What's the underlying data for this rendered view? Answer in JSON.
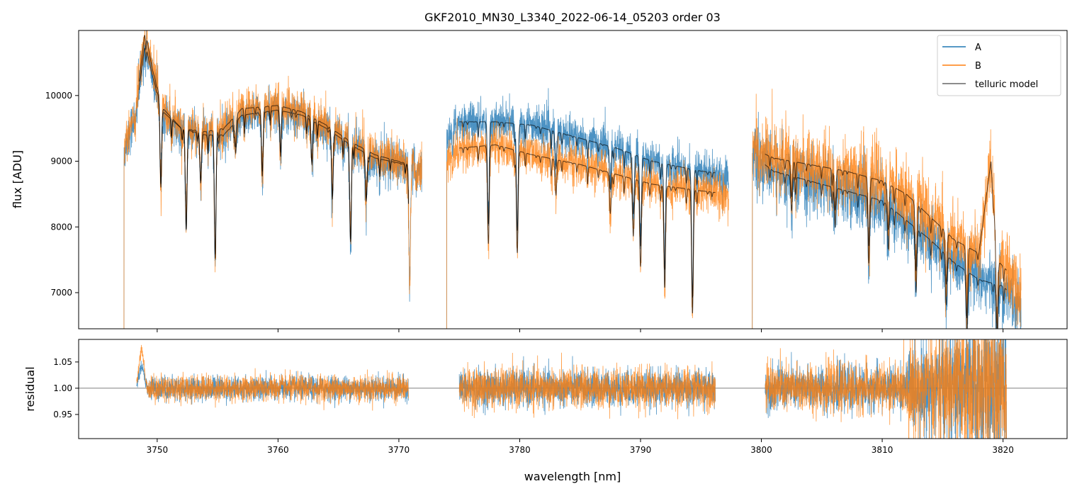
{
  "chart_data": {
    "type": "line",
    "title": "GKF2010_MN30_L3340_2022-06-14_05203  order 03",
    "xlabel": "wavelength [nm]",
    "xlim": [
      3743.5,
      3825.3
    ],
    "xticks": [
      3750,
      3760,
      3770,
      3780,
      3790,
      3800,
      3810,
      3820
    ],
    "panels": [
      {
        "name": "flux",
        "ylabel": "flux [ADU]",
        "ylim": [
          6450,
          10990
        ],
        "yticks": [
          7000,
          8000,
          9000,
          10000
        ],
        "legend": {
          "placement": "top-right",
          "entries": [
            "A",
            "B",
            "telluric model"
          ]
        }
      },
      {
        "name": "residual",
        "ylabel": "residual",
        "ylim": [
          0.904,
          1.093
        ],
        "yticks": [
          "0.95",
          "1.00",
          "1.05"
        ],
        "yticks_values": [
          0.95,
          1.0,
          1.05
        ],
        "reference_line": 1.0
      }
    ],
    "series": [
      {
        "name": "A",
        "color": "#1f77b4",
        "segments": [
          {
            "range": [
              3747.2,
              3771.9
            ],
            "continuum": [
              [
                3747.2,
                9150
              ],
              [
                3748.3,
                9800
              ],
              [
                3749,
                10800
              ],
              [
                3749.6,
                10300
              ],
              [
                3750.5,
                9750
              ],
              [
                3752,
                9500
              ],
              [
                3754,
                9400
              ],
              [
                3755.5,
                9400
              ],
              [
                3757,
                9700
              ],
              [
                3760,
                9780
              ],
              [
                3762,
                9700
              ],
              [
                3764,
                9500
              ],
              [
                3766,
                9250
              ],
              [
                3768,
                9050
              ],
              [
                3771.9,
                8900
              ]
            ],
            "noise": 170
          },
          {
            "range": [
              3773.9,
              3797.3
            ],
            "continuum": [
              [
                3773.9,
                9300
              ],
              [
                3775,
                9600
              ],
              [
                3778,
                9600
              ],
              [
                3781,
                9550
              ],
              [
                3785,
                9350
              ],
              [
                3788,
                9200
              ],
              [
                3791,
                9000
              ],
              [
                3795,
                8850
              ],
              [
                3797.3,
                8800
              ]
            ],
            "noise": 160
          },
          {
            "range": [
              3799.2,
              3821.5
            ],
            "continuum": [
              [
                3799.2,
                9100
              ],
              [
                3801,
                8850
              ],
              [
                3804,
                8700
              ],
              [
                3807,
                8550
              ],
              [
                3810,
                8400
              ],
              [
                3812,
                8100
              ],
              [
                3814,
                7800
              ],
              [
                3816,
                7450
              ],
              [
                3818,
                7200
              ],
              [
                3820,
                7100
              ],
              [
                3821.5,
                6800
              ]
            ],
            "noise": 260
          }
        ]
      },
      {
        "name": "B",
        "color": "#ff7f0e",
        "segments": [
          {
            "range": [
              3747.2,
              3771.9
            ],
            "continuum": [
              [
                3747.2,
                9150
              ],
              [
                3748.3,
                9900
              ],
              [
                3749,
                11000
              ],
              [
                3749.6,
                10400
              ],
              [
                3750.5,
                9800
              ],
              [
                3752,
                9500
              ],
              [
                3754,
                9450
              ],
              [
                3755.5,
                9500
              ],
              [
                3757,
                9800
              ],
              [
                3760,
                9850
              ],
              [
                3762,
                9750
              ],
              [
                3764,
                9550
              ],
              [
                3766,
                9300
              ],
              [
                3768,
                9100
              ],
              [
                3771.9,
                8900
              ]
            ],
            "noise": 180
          },
          {
            "range": [
              3773.9,
              3797.3
            ],
            "continuum": [
              [
                3773.9,
                9000
              ],
              [
                3775,
                9200
              ],
              [
                3778,
                9250
              ],
              [
                3781,
                9100
              ],
              [
                3785,
                8950
              ],
              [
                3788,
                8800
              ],
              [
                3791,
                8650
              ],
              [
                3795,
                8550
              ],
              [
                3797.3,
                8500
              ]
            ],
            "noise": 160
          },
          {
            "range": [
              3799.2,
              3821.5
            ],
            "continuum": [
              [
                3799.2,
                9200
              ],
              [
                3801,
                9050
              ],
              [
                3804,
                8950
              ],
              [
                3807,
                8850
              ],
              [
                3810,
                8700
              ],
              [
                3812,
                8500
              ],
              [
                3814,
                8150
              ],
              [
                3816,
                7800
              ],
              [
                3818,
                7600
              ],
              [
                3819,
                9000
              ],
              [
                3819.5,
                7500
              ],
              [
                3820.5,
                7300
              ],
              [
                3821.5,
                6900
              ]
            ],
            "noise": 280
          }
        ]
      },
      {
        "name": "telluric model",
        "color": "#555555",
        "segments": [
          {
            "range": [
              3748.5,
              3770.8
            ]
          },
          {
            "range": [
              3775.0,
              3796.2
            ]
          },
          {
            "range": [
              3800.3,
              3820.3
            ]
          }
        ]
      }
    ],
    "absorption_lines": [
      [
        3750.3,
        0.12
      ],
      [
        3752.4,
        0.16
      ],
      [
        3753.6,
        0.08
      ],
      [
        3754.8,
        0.2
      ],
      [
        3756.5,
        0.05
      ],
      [
        3758.7,
        0.1
      ],
      [
        3760.2,
        0.05
      ],
      [
        3762.8,
        0.07
      ],
      [
        3764.5,
        0.1
      ],
      [
        3766.0,
        0.16
      ],
      [
        3767.3,
        0.08
      ],
      [
        3770.9,
        0.2
      ],
      [
        3777.4,
        0.15
      ],
      [
        3779.8,
        0.17
      ],
      [
        3783.0,
        0.06
      ],
      [
        3787.5,
        0.07
      ],
      [
        3789.4,
        0.1
      ],
      [
        3790.0,
        0.15
      ],
      [
        3792.0,
        0.18
      ],
      [
        3794.3,
        0.22
      ],
      [
        3802.5,
        0.06
      ],
      [
        3806.1,
        0.07
      ],
      [
        3808.9,
        0.1
      ],
      [
        3810.5,
        0.08
      ],
      [
        3812.8,
        0.12
      ],
      [
        3815.3,
        0.1
      ],
      [
        3817.0,
        0.12
      ],
      [
        3819.5,
        0.15
      ]
    ],
    "residual_segments": [
      {
        "range": [
          3748.3,
          3770.8
        ],
        "sigma": 0.012
      },
      {
        "range": [
          3775.0,
          3796.2
        ],
        "sigma": 0.018
      },
      {
        "range": [
          3800.3,
          3820.3
        ],
        "sigma": 0.022
      }
    ]
  }
}
